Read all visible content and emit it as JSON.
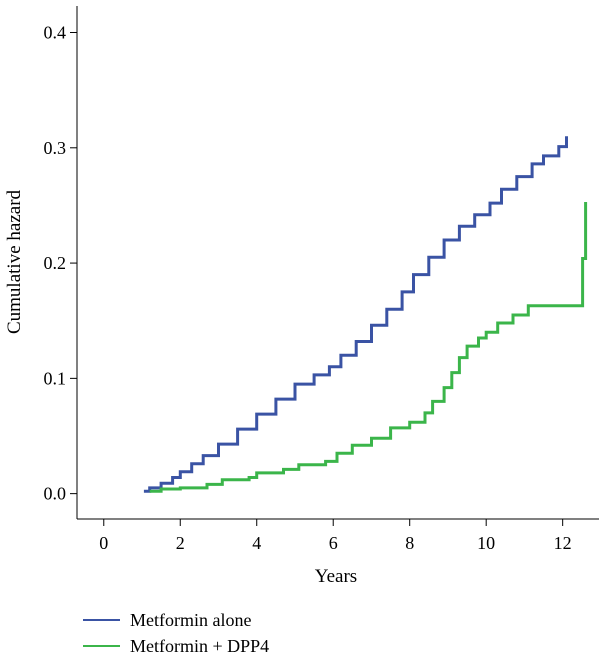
{
  "chart_data": {
    "type": "line",
    "title": "",
    "xlabel": "Years",
    "ylabel": "Cumulative hazard",
    "xlim": [
      -0.7,
      12.95
    ],
    "ylim": [
      -0.022,
      0.423
    ],
    "x_ticks": [
      0,
      2,
      4,
      6,
      8,
      10,
      12
    ],
    "x_tick_labels": [
      "0",
      "2",
      "4",
      "6",
      "8",
      "10",
      "12"
    ],
    "y_ticks": [
      0.0,
      0.1,
      0.2,
      0.3,
      0.4
    ],
    "y_tick_labels": [
      "0.0",
      "0.1",
      "0.2",
      "0.3",
      "0.4"
    ],
    "grid": false,
    "legend_position": "bottom-left",
    "series": [
      {
        "name": "Metformin alone",
        "color": "#3a53a4",
        "step": true,
        "x": [
          1.05,
          1.2,
          1.5,
          1.8,
          2.0,
          2.3,
          2.6,
          3.0,
          3.5,
          4.0,
          4.5,
          5.0,
          5.5,
          5.9,
          6.2,
          6.6,
          7.0,
          7.4,
          7.8,
          8.1,
          8.5,
          8.9,
          9.3,
          9.7,
          10.1,
          10.4,
          10.8,
          11.2,
          11.5,
          11.9,
          12.1
        ],
        "y": [
          0.002,
          0.005,
          0.009,
          0.014,
          0.019,
          0.026,
          0.033,
          0.043,
          0.056,
          0.069,
          0.082,
          0.095,
          0.103,
          0.11,
          0.12,
          0.132,
          0.146,
          0.16,
          0.175,
          0.19,
          0.205,
          0.22,
          0.232,
          0.242,
          0.252,
          0.264,
          0.275,
          0.286,
          0.293,
          0.301,
          0.31
        ]
      },
      {
        "name": "Metformin + DPP4",
        "color": "#3bb54a",
        "step": true,
        "x": [
          1.2,
          1.5,
          2.0,
          2.7,
          3.1,
          3.8,
          4.0,
          4.7,
          5.1,
          5.8,
          6.1,
          6.5,
          7.0,
          7.5,
          8.0,
          8.4,
          8.6,
          8.9,
          9.1,
          9.3,
          9.5,
          9.8,
          10.0,
          10.3,
          10.7,
          11.1,
          12.45,
          12.52,
          12.6
        ],
        "y": [
          0.002,
          0.004,
          0.005,
          0.008,
          0.012,
          0.014,
          0.018,
          0.021,
          0.025,
          0.028,
          0.035,
          0.042,
          0.048,
          0.057,
          0.062,
          0.07,
          0.08,
          0.092,
          0.105,
          0.118,
          0.128,
          0.135,
          0.14,
          0.148,
          0.155,
          0.163,
          0.163,
          0.204,
          0.253
        ]
      }
    ]
  }
}
